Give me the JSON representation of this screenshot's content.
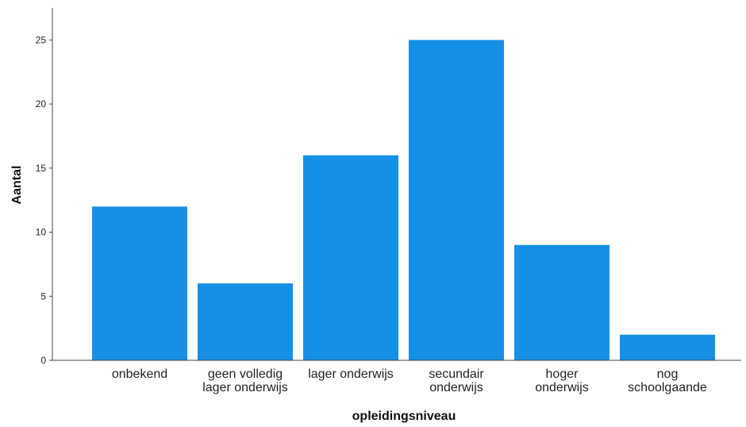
{
  "chart_data": {
    "type": "bar",
    "xlabel": "opleidingsniveau",
    "ylabel": "Aantal",
    "categories": [
      [
        "onbekend"
      ],
      [
        "geen volledig",
        "lager onderwijs"
      ],
      [
        "lager onderwijs"
      ],
      [
        "secundair",
        "onderwijs"
      ],
      [
        "hoger",
        "onderwijs"
      ],
      [
        "nog",
        "schoolgaande"
      ]
    ],
    "values": [
      12,
      6,
      16,
      25,
      9,
      2
    ],
    "yticks": [
      0,
      5,
      10,
      15,
      20,
      25
    ],
    "ylim": [
      0,
      27.5
    ],
    "grid": false,
    "bar_color": "#1590e6"
  }
}
